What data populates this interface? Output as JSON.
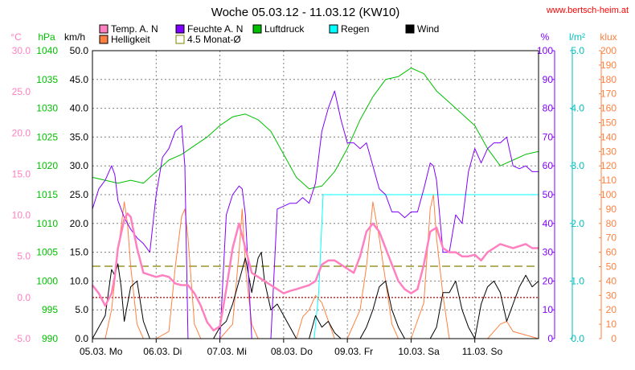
{
  "title": "Woche 05.03.12 - 11.03.12 (KW10)",
  "source": "www.bertsch-heim.at",
  "chart_data": {
    "type": "line",
    "legend": [
      {
        "name": "Temp. A. N",
        "color": "#ff80c0"
      },
      {
        "name": "Helligkeit",
        "color": "#ff8040"
      },
      {
        "name": "Feuchte A. N",
        "color": "#8000ff"
      },
      {
        "name": "4.5 Monat-Ø",
        "color": "#808000"
      },
      {
        "name": "Luftdruck",
        "color": "#00c000"
      },
      {
        "name": "Regen",
        "color": "#00ffff"
      },
      {
        "name": "Wind",
        "color": "#000000"
      }
    ],
    "axes": [
      {
        "id": "temp",
        "unit": "°C",
        "color": "#ff80c0",
        "min": -5,
        "max": 30,
        "step": 5,
        "decimals": 1,
        "ticks": [
          "-5.0",
          "0.0",
          "5.0",
          "10.0",
          "15.0",
          "20.0",
          "25.0",
          "30.0"
        ]
      },
      {
        "id": "press",
        "unit": "hPa",
        "color": "#00c000",
        "min": 990,
        "max": 1040,
        "step": 5,
        "decimals": 0,
        "ticks": [
          "990",
          "995",
          "1000",
          "1005",
          "1010",
          "1015",
          "1020",
          "1025",
          "1030",
          "1035",
          "1040"
        ]
      },
      {
        "id": "wind",
        "unit": "km/h",
        "color": "#000000",
        "min": 0,
        "max": 50,
        "step": 5,
        "decimals": 1,
        "ticks": [
          "0.0",
          "5.0",
          "10.0",
          "15.0",
          "20.0",
          "25.0",
          "30.0",
          "35.0",
          "40.0",
          "45.0",
          "50.0"
        ]
      },
      {
        "id": "hum",
        "unit": "%",
        "color": "#8000ff",
        "min": 0,
        "max": 100,
        "step": 10,
        "decimals": 0,
        "ticks": [
          "0",
          "10",
          "20",
          "30",
          "40",
          "50",
          "60",
          "70",
          "80",
          "90",
          "100"
        ]
      },
      {
        "id": "rain",
        "unit": "l/m²",
        "color": "#00c0c0",
        "min": 0,
        "max": 5,
        "step": 1,
        "decimals": 1,
        "ticks": [
          "0.0",
          "1.0",
          "2.0",
          "3.0",
          "4.0",
          "5.0"
        ]
      },
      {
        "id": "lux",
        "unit": "klux",
        "color": "#ff8040",
        "min": 0,
        "max": 200,
        "step": 10,
        "decimals": 0,
        "ticks": [
          "0",
          "10",
          "20",
          "30",
          "40",
          "50",
          "60",
          "70",
          "80",
          "90",
          "100",
          "110",
          "120",
          "130",
          "140",
          "150",
          "160",
          "170",
          "180",
          "190",
          "200"
        ]
      }
    ],
    "x_range_days": [
      0,
      7
    ],
    "x_ticks": [
      "05.03. Mo",
      "06.03. Di",
      "07.03. Mi",
      "08.03. Do",
      "09.03. Fr",
      "10.03. Sa",
      "11.03. So"
    ],
    "grid": true,
    "reference_lines": [
      {
        "name": "4.5 Monat-Ø",
        "axis": "temp",
        "value": 3.8,
        "color": "#808000"
      },
      {
        "axis": "temp",
        "value": 0,
        "color": "#c00000"
      }
    ],
    "series": [
      {
        "name": "Temp. A. N",
        "axis": "temp",
        "color": "#ff80c0",
        "x": [
          0,
          0.1,
          0.2,
          0.3,
          0.35,
          0.4,
          0.5,
          0.55,
          0.6,
          0.7,
          0.8,
          1.0,
          1.1,
          1.2,
          1.3,
          1.4,
          1.5,
          1.6,
          1.7,
          1.8,
          1.9,
          2.0,
          2.1,
          2.2,
          2.3,
          2.4,
          2.5,
          2.7,
          2.9,
          3.0,
          3.1,
          3.2,
          3.4,
          3.5,
          3.6,
          3.7,
          3.8,
          4.0,
          4.1,
          4.2,
          4.3,
          4.4,
          4.5,
          4.6,
          4.7,
          4.8,
          4.9,
          5.0,
          5.1,
          5.2,
          5.3,
          5.4,
          5.5,
          5.6,
          5.7,
          5.8,
          5.9,
          6.0,
          6.1,
          6.2,
          6.3,
          6.4,
          6.6,
          6.8,
          6.9,
          7.0
        ],
        "y": [
          1.5,
          0.5,
          -1.0,
          0.5,
          2.5,
          6.0,
          9.5,
          10.2,
          9.8,
          6.0,
          3.0,
          2.5,
          2.7,
          2.5,
          1.7,
          1.5,
          1.5,
          0.5,
          -1.0,
          -3.0,
          -4.0,
          -3.5,
          1.0,
          6.0,
          9.0,
          6.0,
          3.0,
          2.0,
          1.0,
          0.5,
          0.8,
          1.0,
          1.5,
          2.0,
          4.0,
          4.5,
          4.5,
          3.5,
          3.0,
          5.0,
          8.0,
          9.0,
          8.0,
          6.0,
          4.0,
          2.0,
          1.0,
          0.5,
          1.0,
          4.0,
          8.0,
          8.5,
          6.0,
          5.5,
          5.5,
          5.0,
          5.0,
          5.2,
          4.5,
          5.5,
          6.0,
          6.5,
          6.0,
          6.5,
          6.0,
          6.0
        ]
      },
      {
        "name": "Luftdruck",
        "axis": "press",
        "color": "#00c000",
        "x": [
          0,
          0.2,
          0.4,
          0.6,
          0.8,
          1.0,
          1.2,
          1.4,
          1.6,
          1.8,
          2.0,
          2.2,
          2.4,
          2.6,
          2.8,
          3.0,
          3.2,
          3.4,
          3.6,
          3.8,
          4.0,
          4.2,
          4.4,
          4.6,
          4.8,
          5.0,
          5.2,
          5.4,
          5.6,
          5.8,
          6.0,
          6.2,
          6.4,
          6.6,
          6.8,
          7.0
        ],
        "y": [
          1018,
          1017.5,
          1017,
          1017.5,
          1017,
          1019,
          1021,
          1022,
          1023.5,
          1025,
          1027,
          1028.5,
          1029,
          1028,
          1026,
          1022,
          1018,
          1016,
          1016.5,
          1019,
          1023,
          1028,
          1032,
          1035,
          1035.5,
          1037,
          1036,
          1033,
          1031,
          1029,
          1027,
          1023,
          1020,
          1021,
          1022,
          1022.5
        ]
      },
      {
        "name": "Feuchte A. N",
        "axis": "hum",
        "color": "#8000ff",
        "x": [
          0,
          0.1,
          0.2,
          0.3,
          0.35,
          0.4,
          0.5,
          0.6,
          0.7,
          0.8,
          0.9,
          1.0,
          1.1,
          1.2,
          1.3,
          1.4,
          1.45,
          1.5,
          1.6,
          1.7,
          1.8,
          1.9,
          2.0,
          2.1,
          2.2,
          2.3,
          2.35,
          2.4,
          2.5,
          2.6,
          2.7,
          2.8,
          2.9,
          3.0,
          3.1,
          3.2,
          3.3,
          3.4,
          3.5,
          3.6,
          3.7,
          3.8,
          3.9,
          4.0,
          4.1,
          4.2,
          4.3,
          4.4,
          4.5,
          4.6,
          4.7,
          4.8,
          4.9,
          5.0,
          5.1,
          5.2,
          5.3,
          5.35,
          5.4,
          5.5,
          5.6,
          5.7,
          5.8,
          5.9,
          6.0,
          6.1,
          6.2,
          6.3,
          6.4,
          6.5,
          6.6,
          6.7,
          6.8,
          6.9,
          7.0
        ],
        "y": [
          45,
          52,
          55,
          60,
          57,
          48,
          42,
          38,
          35,
          33,
          30,
          50,
          63,
          66,
          72,
          74,
          60,
          0,
          0,
          0,
          0,
          0,
          0,
          43,
          50,
          53,
          52,
          43,
          0,
          0,
          0,
          0,
          45,
          46,
          47,
          47,
          49,
          47,
          54,
          72,
          80,
          86,
          76,
          68,
          68,
          66,
          68,
          60,
          52,
          50,
          44,
          44,
          42,
          44,
          44,
          52,
          61,
          60,
          55,
          30,
          30,
          43,
          40,
          58,
          66,
          61,
          66,
          68,
          68,
          70,
          60,
          59,
          60,
          58,
          58
        ]
      },
      {
        "name": "Helligkeit",
        "axis": "lux",
        "color": "#ff8040",
        "x": [
          0,
          0.2,
          0.3,
          0.4,
          0.5,
          0.55,
          0.6,
          0.7,
          0.8,
          0.9,
          1.0,
          1.2,
          1.3,
          1.4,
          1.45,
          1.5,
          1.6,
          1.7,
          1.8,
          2.0,
          2.2,
          2.3,
          2.35,
          2.4,
          2.5,
          2.6,
          2.8,
          3.0,
          3.2,
          3.3,
          3.4,
          3.5,
          3.6,
          3.8,
          4.0,
          4.2,
          4.3,
          4.4,
          4.5,
          4.6,
          4.7,
          4.8,
          5.0,
          5.2,
          5.3,
          5.35,
          5.4,
          5.5,
          5.6,
          5.8,
          6.0,
          6.2,
          6.3,
          6.4,
          6.5,
          6.6,
          7.0
        ],
        "y": [
          0,
          0,
          20,
          60,
          95,
          80,
          50,
          10,
          0,
          0,
          0,
          5,
          50,
          85,
          90,
          70,
          10,
          0,
          0,
          0,
          10,
          60,
          90,
          50,
          10,
          0,
          0,
          0,
          0,
          15,
          20,
          30,
          25,
          0,
          0,
          20,
          50,
          95,
          70,
          40,
          10,
          0,
          0,
          25,
          90,
          100,
          70,
          30,
          0,
          0,
          0,
          0,
          5,
          10,
          12,
          5,
          0
        ]
      },
      {
        "name": "Regen",
        "axis": "rain",
        "color": "#00ffff",
        "x": [
          0,
          3.48,
          3.55,
          3.62,
          3.65,
          7.0
        ],
        "y": [
          0,
          0,
          0.8,
          2.5,
          2.5,
          2.5
        ]
      },
      {
        "name": "Wind",
        "axis": "wind",
        "color": "#000000",
        "x": [
          0,
          0.2,
          0.3,
          0.35,
          0.4,
          0.45,
          0.5,
          0.55,
          0.6,
          0.7,
          0.8,
          0.9,
          1.0,
          1.1,
          1.2,
          1.3,
          1.4,
          1.5,
          1.6,
          1.7,
          1.8,
          1.9,
          2.0,
          2.1,
          2.2,
          2.3,
          2.4,
          2.5,
          2.6,
          2.65,
          2.7,
          2.8,
          2.9,
          3.0,
          3.1,
          3.2,
          3.3,
          3.4,
          3.5,
          3.6,
          3.7,
          3.8,
          3.9,
          4.0,
          4.1,
          4.2,
          4.3,
          4.4,
          4.5,
          4.6,
          4.7,
          4.8,
          4.9,
          5.0,
          5.1,
          5.2,
          5.3,
          5.4,
          5.5,
          5.6,
          5.7,
          5.8,
          5.9,
          6.0,
          6.1,
          6.2,
          6.3,
          6.4,
          6.5,
          6.6,
          6.7,
          6.8,
          6.9,
          7.0
        ],
        "y": [
          0,
          4,
          12,
          11,
          13,
          9,
          3,
          6,
          9,
          10,
          3,
          0,
          0,
          0,
          0,
          0,
          0,
          0,
          0,
          0,
          0,
          0,
          2,
          3,
          6,
          10,
          14,
          8,
          14,
          15,
          10,
          5,
          6,
          4,
          2,
          0,
          0,
          0,
          4,
          2,
          3,
          1,
          0,
          0,
          0,
          0,
          2,
          5,
          9,
          10,
          5,
          2,
          0,
          0,
          0,
          0,
          0,
          2,
          8,
          8,
          10,
          5,
          2,
          0,
          6,
          9,
          10,
          8,
          3,
          6,
          9,
          11,
          9,
          10
        ]
      }
    ]
  }
}
